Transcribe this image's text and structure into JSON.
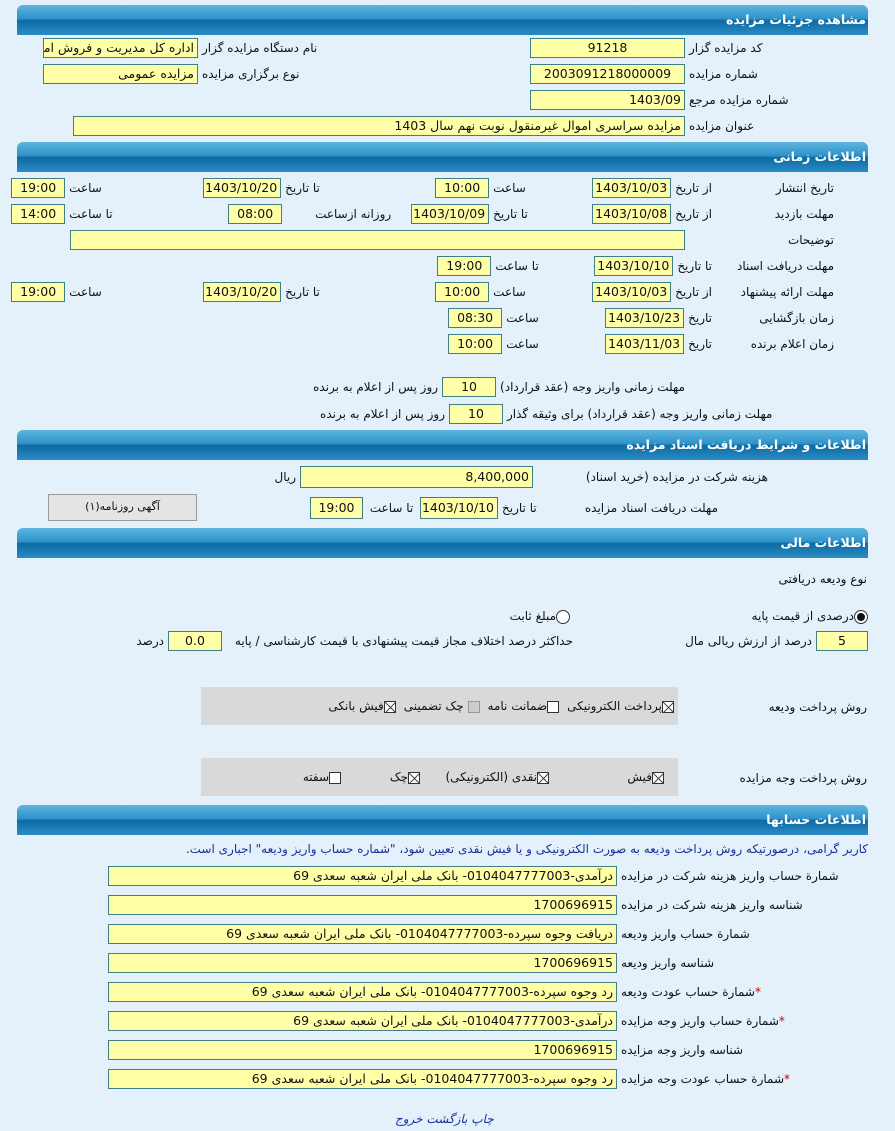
{
  "colors": {
    "header": "#1478b4",
    "field": "#ffffa8",
    "background": "#e4f1fb",
    "notice": "#1a2f9c"
  },
  "details": {
    "title": "مشاهده جزئیات مزایده",
    "auctioneer_code_label": "کد مزایده گزار",
    "auctioneer_code": "91218",
    "org_name_label": "نام دستگاه مزایده گزار",
    "org_name": "اداره کل مدیریت و فروش اموال",
    "auction_no_label": "شماره مزایده",
    "auction_no": "2003091218000009",
    "type_label": "نوع برگزاری مزایده",
    "type": "مزایده عمومی",
    "ref_no_label": "شماره مزایده مرجع",
    "ref_no": "1403/09",
    "subject_label": "عنوان مزایده",
    "subject": "مزایده سراسری اموال غیرمنقول نوبت نهم سال 1403"
  },
  "timing": {
    "title": "اطلاعات زمانی",
    "from_date": "از تاریخ",
    "to_date": "تا تاریخ",
    "date": "تاریخ",
    "time": "ساعت",
    "to_time": "تا ساعت",
    "daily_from": "روزانه ازساعت",
    "publish_label": "تاریخ انتشار",
    "publish_from": "1403/10/03",
    "publish_from_time": "10:00",
    "publish_to": "1403/10/20",
    "publish_to_time": "19:00",
    "visit_label": "مهلت بازدید",
    "visit_from": "1403/10/08",
    "visit_to": "1403/10/09",
    "visit_daily_from": "08:00",
    "visit_to_time": "14:00",
    "desc_label": "توضیحات",
    "desc": "",
    "docs_label": "مهلت دریافت اسناد",
    "docs_to": "1403/10/10",
    "docs_to_time": "19:00",
    "offer_label": "مهلت ارائه پیشنهاد",
    "offer_from": "1403/10/03",
    "offer_from_time": "10:00",
    "offer_to": "1403/10/20",
    "offer_to_time": "19:00",
    "open_label": "زمان بازگشایی",
    "open_date": "1403/10/23",
    "open_time": "08:30",
    "winner_label": "زمان اعلام برنده",
    "winner_date": "1403/11/03",
    "winner_time": "10:00",
    "pay_label": "مهلت زمانی واریز وجه (عقد قرارداد)",
    "pay_days": "10",
    "pay_pledge_label": "مهلت زمانی واریز وجه (عقد قرارداد) برای وثیقه گذار",
    "pay_pledge_days": "10",
    "days_suffix": "روز پس از اعلام به برنده"
  },
  "documents": {
    "title": "اطلاعات و شرایط دریافت اسناد مزایده",
    "fee_label": "هزینه شرکت در مزایده (خرید اسناد)",
    "fee": "8,400,000",
    "currency": "ریال",
    "deadline_label": "مهلت دریافت اسناد مزایده",
    "to_date": "تا تاریخ",
    "deadline_date": "1403/10/10",
    "to_time": "تا ساعت",
    "deadline_time": "19:00",
    "ad_button": "آگهی روزنامه(۱)"
  },
  "financial": {
    "title": "اطلاعات مالی",
    "deposit_type_label": "نوع ودیعه دریافتی",
    "radio_percent": "درصدی از قیمت پایه",
    "radio_fixed": "مبلغ ثابت",
    "selected": "percent",
    "percent_value": "5",
    "percent_suffix": "درصد از ارزش ریالی مال",
    "max_diff_label": "حداکثر درصد اختلاف مجاز قیمت پیشنهادی با قیمت کارشناسی / پایه",
    "max_diff": "0.0",
    "max_diff_suffix": "درصد",
    "deposit_pay_label": "روش پرداخت ودیعه",
    "deposit_methods": [
      {
        "label": "پرداخت الکترونیکی",
        "checked": true
      },
      {
        "label": "ضمانت نامه",
        "checked": false
      },
      {
        "label": "چک تضمینی",
        "checked": false
      },
      {
        "label": "فیش بانکی",
        "checked": true
      }
    ],
    "auction_pay_label": "روش پرداخت وجه مزایده",
    "auction_methods": [
      {
        "label": "فیش",
        "checked": true
      },
      {
        "label": "نقدی (الکترونیکی)",
        "checked": true
      },
      {
        "label": "چک",
        "checked": true
      },
      {
        "label": "سفته",
        "checked": false
      }
    ]
  },
  "accounts": {
    "title": "اطلاعات حسابها",
    "notice": "کاربر گرامی، درصورتیکه روش پرداخت ودیعه به صورت الکترونیکی و یا فیش نقدی تعیین شود، \"شماره حساب واریز ودیعه\" اجباری است.",
    "rows": [
      {
        "label": "شمارة حساب واریز هزینه شرکت در مزایده",
        "value": "درآمدی-0104047777003- بانک ملی ایران شعبه سعدی 69",
        "required": false
      },
      {
        "label": "شناسه واریز هزینه شرکت در مزایده",
        "value": "1700696915",
        "required": false
      },
      {
        "label": "شمارة حساب واریز ودیعه",
        "value": "دریافت وجوه سپرده-0104047777003- بانک ملی ایران شعبه سعدی 69",
        "required": false
      },
      {
        "label": "شناسه واریز ودیعه",
        "value": "1700696915",
        "required": false
      },
      {
        "label": "شمارة حساب عودت ودیعه",
        "value": "رد وجوه سپرده-0104047777003- بانک ملی ایران شعبه سعدی 69",
        "required": true
      },
      {
        "label": "شمارة حساب واریز وجه مزایده",
        "value": "درآمدی-0104047777003- بانک ملی ایران شعبه سعدی 69",
        "required": true
      },
      {
        "label": "شناسه واریز وجه مزایده",
        "value": "1700696915",
        "required": false
      },
      {
        "label": "شمارة حساب عودت وجه مزایده",
        "value": "رد وجوه سپرده-0104047777003- بانک ملی ایران شعبه سعدی 69",
        "required": true
      }
    ],
    "star": "*"
  },
  "footer": {
    "print": "چاپ",
    "back": "بازگشت",
    "exit": "خروج"
  }
}
